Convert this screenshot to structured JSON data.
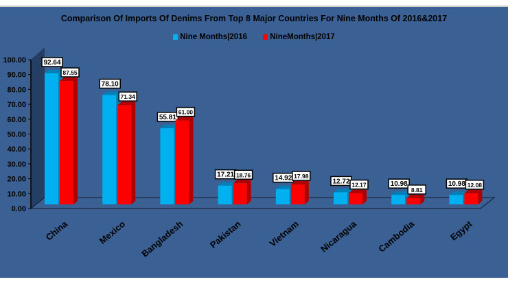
{
  "chart_data": {
    "type": "bar",
    "title": "Comparison Of Imports Of Denims From Top 8 Major Countries For Nine Months Of 2016&2017",
    "categories": [
      "China",
      "Mexico",
      "Bangladesh",
      "Pakistan",
      "Vietnam",
      "Nicaragua",
      "Cambodia",
      "Egypt"
    ],
    "series": [
      {
        "name": "Nine Months|2016",
        "color": "#00b0f0",
        "values": [
          92.64,
          78.1,
          55.81,
          17.21,
          14.92,
          12.72,
          10.98,
          10.98
        ]
      },
      {
        "name": "NineMonths|2017",
        "color": "#ff0000",
        "values": [
          87.55,
          71.34,
          61.0,
          18.76,
          17.98,
          12.17,
          8.81,
          12.08
        ]
      }
    ],
    "yticks": [
      "0.00",
      "10.00",
      "20.00",
      "30.00",
      "40.00",
      "50.00",
      "60.00",
      "70.00",
      "80.00",
      "90.00",
      "100.00"
    ],
    "ylim": [
      0,
      100
    ],
    "xlabel": "",
    "ylabel": "",
    "legend_position": "top"
  }
}
